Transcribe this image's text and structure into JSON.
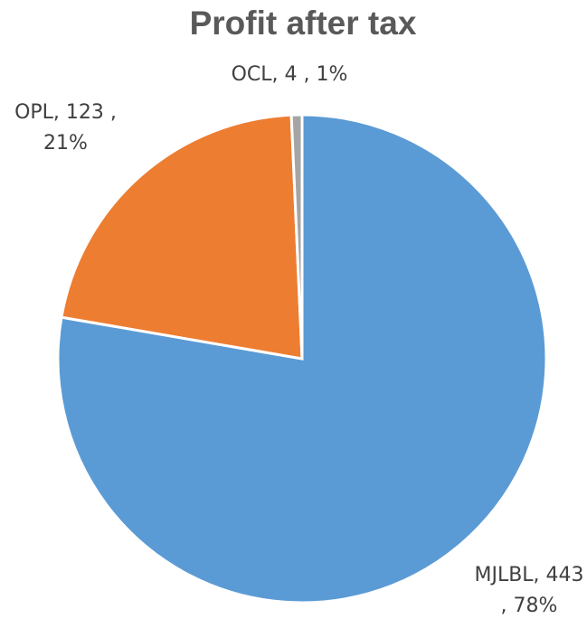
{
  "chart_data": {
    "type": "pie",
    "title": "Profit after tax",
    "categories": [
      "MJLBL",
      "OPL",
      "OCL"
    ],
    "values": [
      443,
      123,
      4
    ],
    "value_labels": [
      "MJLBL, 443 , 78%",
      "OPL, 123 , 21%",
      "OCL, 4 , 1%"
    ],
    "colors": [
      "#5b9bd5",
      "#ed7d31",
      "#a5a5a5"
    ]
  }
}
